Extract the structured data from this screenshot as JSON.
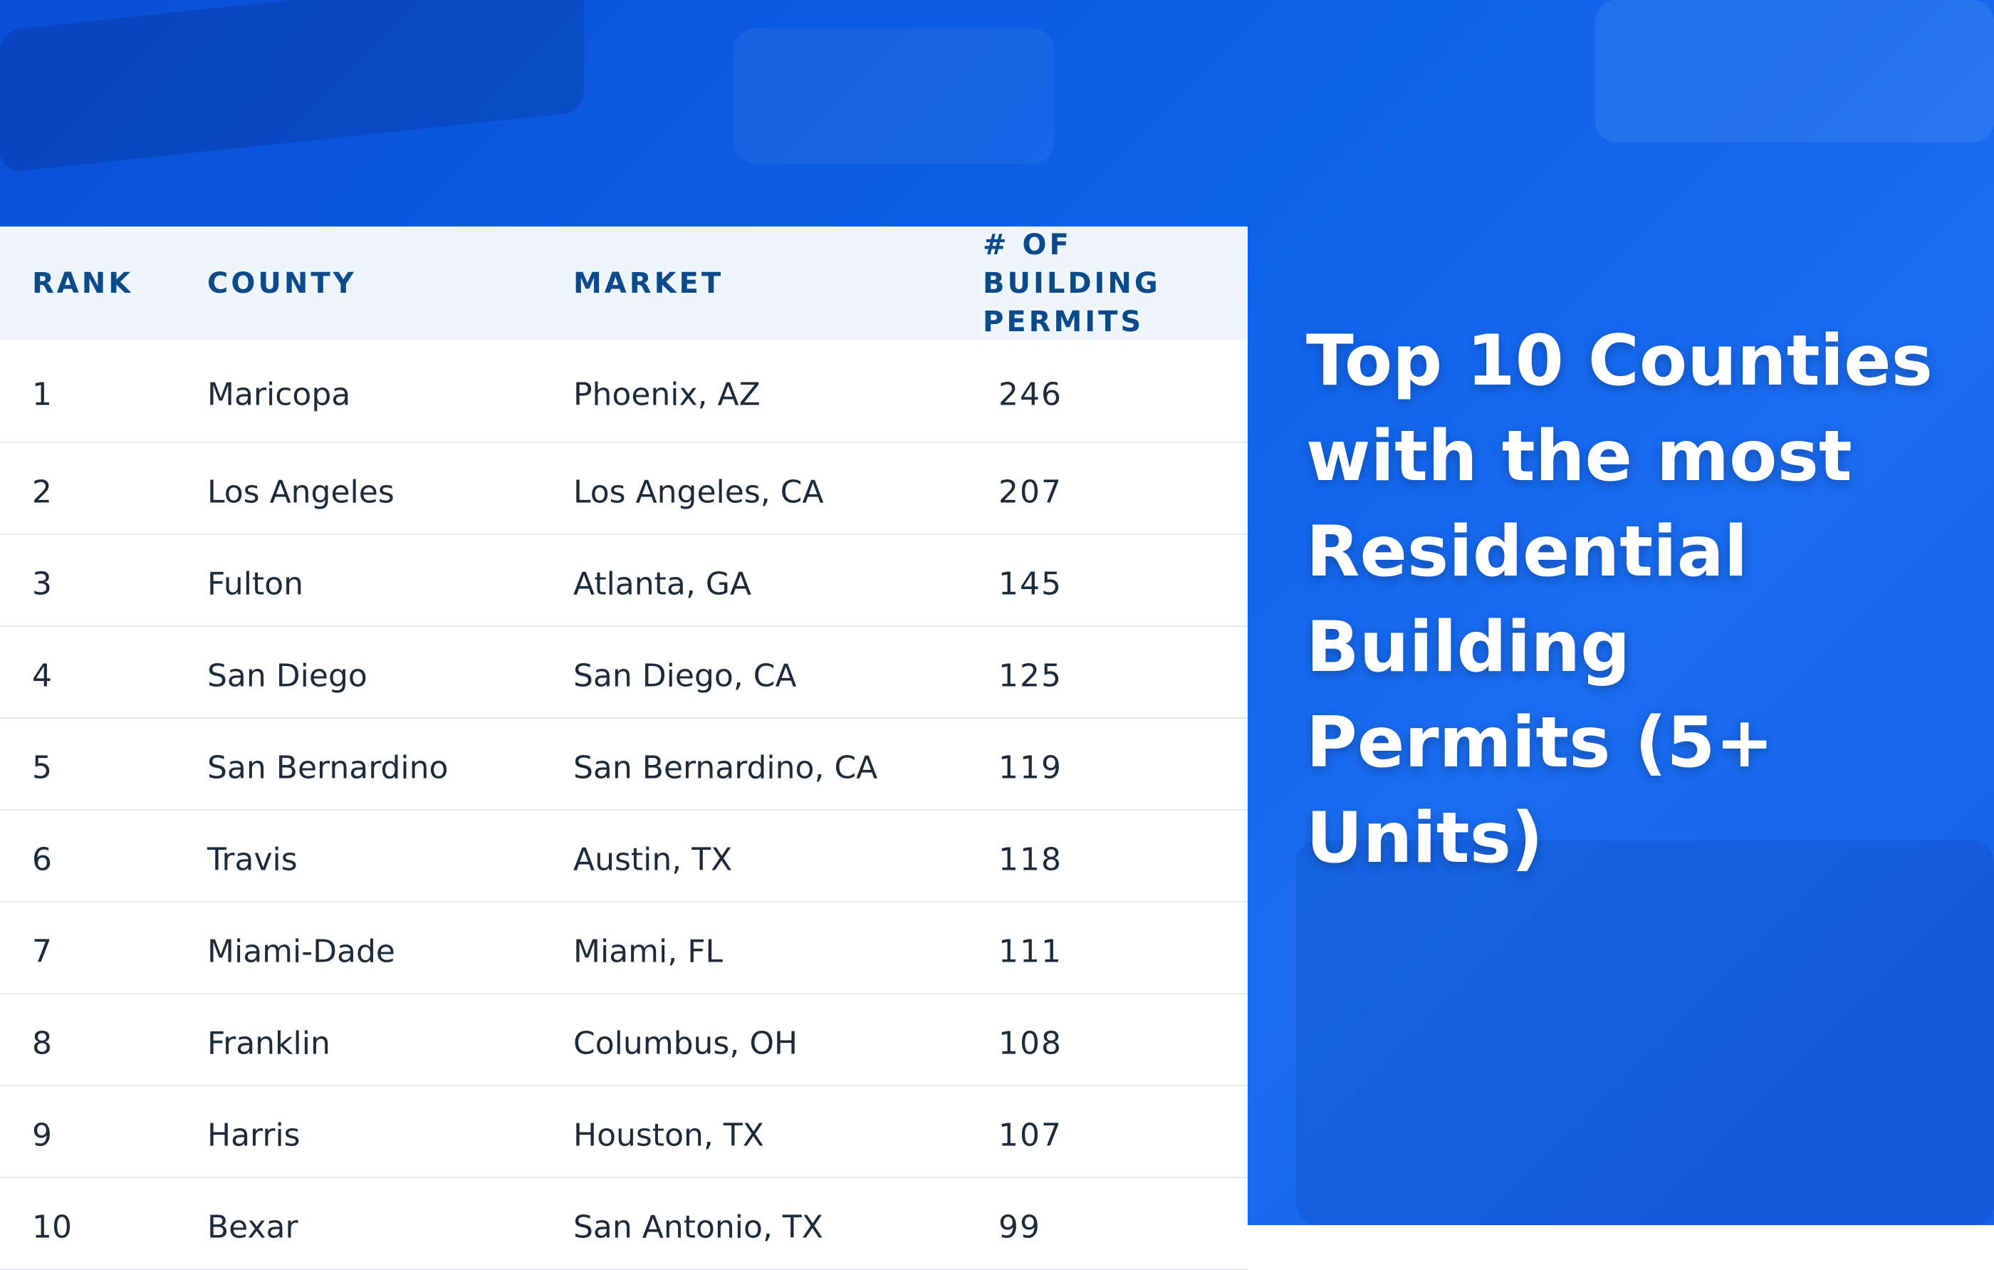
{
  "table": {
    "header": [
      "RANK",
      "COUNTY",
      "MARKET",
      "# OF BUILDING PERMITS"
    ],
    "rows": [
      [
        1,
        "Maricopa",
        "Phoenix, AZ",
        246
      ],
      [
        2,
        "Los Angeles",
        "Los Angeles, CA",
        207
      ],
      [
        3,
        "Fulton",
        "Atlanta, GA",
        145
      ],
      [
        4,
        "San Diego",
        "San Diego, CA",
        125
      ],
      [
        5,
        "San Bernardino",
        "San Bernardino, CA",
        119
      ],
      [
        6,
        "Travis",
        "Austin, TX",
        118
      ],
      [
        7,
        "Miami-Dade",
        "Miami, FL",
        111
      ],
      [
        8,
        "Franklin",
        "Columbus, OH",
        108
      ],
      [
        9,
        "Harris",
        "Houston, TX",
        107
      ],
      [
        10,
        "Bexar",
        "San Antonio, TX",
        99
      ]
    ]
  },
  "title": "Top 10 Counties with the most Residential Building Permits (5+ Units)"
}
